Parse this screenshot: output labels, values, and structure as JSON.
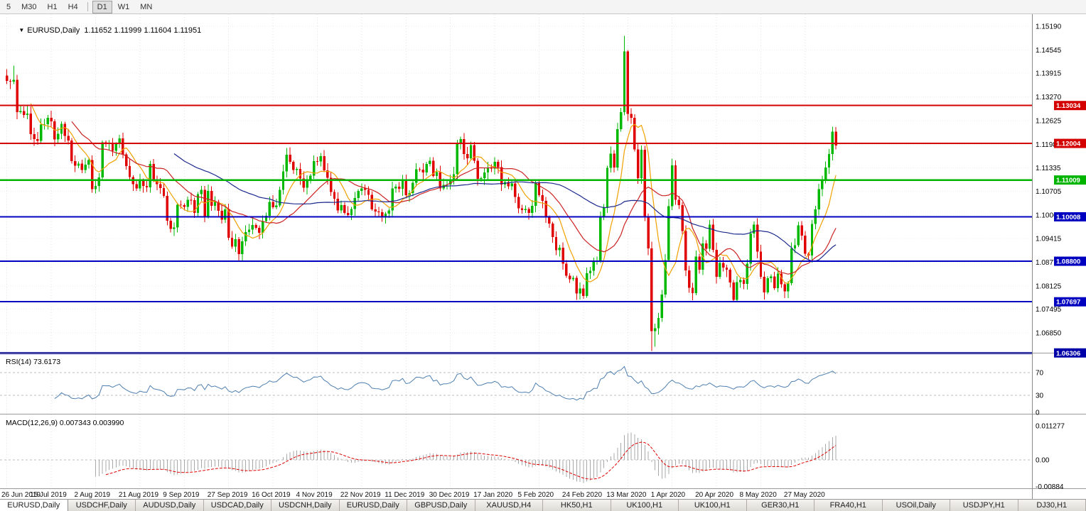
{
  "icons": {
    "collapse_triangle": "▼"
  },
  "toolbar": {
    "timeframes": [
      {
        "label": "5"
      },
      {
        "label": "M30"
      },
      {
        "label": "H1"
      },
      {
        "label": "H4",
        "sep_after": true
      },
      {
        "label": "D1"
      },
      {
        "label": "W1"
      },
      {
        "label": "MN"
      }
    ],
    "active": "D1"
  },
  "chart": {
    "header": "EURUSD,Daily  1.11652 1.11999 1.11604 1.11951"
  },
  "chart_data": {
    "type": "candlestick",
    "title": "EURUSD,Daily",
    "ohlc_display": {
      "open": "1.11652",
      "high": "1.11999",
      "low": "1.11604",
      "close": "1.11951"
    },
    "x_label_interval": 13,
    "x_labels": [
      "26 Jun 2019",
      "15 Jul 2019",
      "2 Aug 2019",
      "21 Aug 2019",
      "9 Sep 2019",
      "27 Sep 2019",
      "16 Oct 2019",
      "4 Nov 2019",
      "22 Nov 2019",
      "11 Dec 2019",
      "30 Dec 2019",
      "17 Jan 2020",
      "5 Feb 2020",
      "24 Feb 2020",
      "13 Mar 2020",
      "1 Apr 2020",
      "20 Apr 2020",
      "8 May 2020",
      "27 May 2020"
    ],
    "closes": [
      1.137,
      1.1368,
      1.1373,
      1.1285,
      1.1288,
      1.1278,
      1.1282,
      1.1226,
      1.1212,
      1.1207,
      1.1252,
      1.1253,
      1.127,
      1.126,
      1.1211,
      1.1227,
      1.1254,
      1.1221,
      1.1208,
      1.1152,
      1.114,
      1.1146,
      1.1128,
      1.1143,
      1.1155,
      1.1076,
      1.1085,
      1.1108,
      1.1203,
      1.12,
      1.1201,
      1.118,
      1.1199,
      1.1214,
      1.1171,
      1.1139,
      1.1109,
      1.109,
      1.1078,
      1.1099,
      1.1085,
      1.1081,
      1.1145,
      1.1101,
      1.109,
      1.1079,
      1.1058,
      1.099,
      1.0968,
      1.0972,
      1.1034,
      1.1033,
      1.1028,
      1.1047,
      1.1046,
      1.1011,
      1.1063,
      1.1074,
      1.1003,
      1.1071,
      1.1031,
      1.1041,
      1.1017,
      1.0993,
      1.1021,
      1.0944,
      1.092,
      1.094,
      1.0899,
      1.0934,
      1.0959,
      1.0966,
      1.0979,
      1.0971,
      1.0957,
      1.0989,
      1.1004,
      1.1041,
      1.1027,
      1.1032,
      1.1074,
      1.1124,
      1.117,
      1.115,
      1.1128,
      1.1131,
      1.1105,
      1.108,
      1.1099,
      1.1113,
      1.1152,
      1.1151,
      1.1166,
      1.1127,
      1.1107,
      1.1068,
      1.105,
      1.1018,
      1.1033,
      1.1011,
      1.1006,
      1.1022,
      1.1052,
      1.1071,
      1.1078,
      1.1074,
      1.1061,
      1.1021,
      1.1015,
      1.1013,
      1.1002,
      1.1009,
      1.1018,
      1.1078,
      1.1083,
      1.1077,
      1.1103,
      1.106,
      1.1065,
      1.1093,
      1.113,
      1.1129,
      1.1121,
      1.1145,
      1.1153,
      1.1112,
      1.1122,
      1.1078,
      1.1088,
      1.1089,
      1.1098,
      1.1117,
      1.1199,
      1.1212,
      1.1172,
      1.116,
      1.1196,
      1.1153,
      1.1104,
      1.1106,
      1.1121,
      1.1134,
      1.1132,
      1.115,
      1.1136,
      1.1089,
      1.1095,
      1.1084,
      1.1091,
      1.1055,
      1.1024,
      1.1019,
      1.1022,
      1.1011,
      1.1031,
      1.1094,
      1.106,
      1.1044,
      1.1,
      1.0982,
      1.0946,
      1.091,
      1.0917,
      1.0873,
      1.0841,
      1.0831,
      1.0835,
      1.0792,
      1.0806,
      1.0786,
      1.0847,
      1.0854,
      1.0881,
      1.0881,
      1.0999,
      1.1026,
      1.1134,
      1.1173,
      1.1135,
      1.1239,
      1.1285,
      1.145,
      1.1281,
      1.127,
      1.1184,
      1.1106,
      1.1183,
      1.1,
      1.0915,
      1.069,
      1.0698,
      1.0726,
      1.0789,
      1.0883,
      1.103,
      1.1141,
      1.1047,
      1.1033,
      1.0962,
      1.0855,
      1.0808,
      1.0793,
      1.0893,
      1.0857,
      1.0928,
      1.0914,
      1.098,
      1.0911,
      1.0838,
      1.0875,
      1.0863,
      1.0857,
      1.0822,
      1.0775,
      1.0823,
      1.0829,
      1.0818,
      1.0873,
      1.0955,
      1.098,
      1.0906,
      1.0838,
      1.0795,
      1.0834,
      1.0839,
      1.0807,
      1.0846,
      1.0817,
      1.0798,
      1.082,
      1.0915,
      1.0924,
      1.0978,
      1.095,
      1.09,
      1.0896,
      1.0981,
      1.1021,
      1.1076,
      1.1101,
      1.1135,
      1.1172,
      1.1232,
      1.1195
    ],
    "wick_overrides": {
      "0": {
        "high": 1.1402
      },
      "2": {
        "high": 1.1412
      },
      "181": {
        "high": 1.1493
      },
      "189": {
        "low": 1.0636
      },
      "190": {
        "low": 1.0648
      }
    },
    "y_axis": {
      "labels": [
        "1.15190",
        "1.14545",
        "1.13915",
        "1.13270",
        "1.12625",
        "1.11980",
        "1.11335",
        "1.10705",
        "1.10060",
        "1.09415",
        "1.08770",
        "1.08125",
        "1.07495",
        "1.06850"
      ]
    },
    "hlines": [
      {
        "value": 1.13034,
        "label": "1.13034",
        "color": "#d40000",
        "width": 2
      },
      {
        "value": 1.12004,
        "label": "1.12004",
        "color": "#d40000",
        "width": 2
      },
      {
        "value": 1.11009,
        "label": "1.11009",
        "color": "#00b400",
        "width": 2.5
      },
      {
        "value": 1.10008,
        "label": "1.10008",
        "color": "#0000c0",
        "width": 2
      },
      {
        "value": 1.088,
        "label": "1.08800",
        "color": "#0000c0",
        "width": 2
      },
      {
        "value": 1.07697,
        "label": "1.07697",
        "color": "#0000c0",
        "width": 2
      },
      {
        "value": 1.06306,
        "label": "1.06306",
        "color": "#0000a8",
        "width": 3
      }
    ],
    "moving_averages": [
      {
        "period": 8,
        "color": "#f0a000"
      },
      {
        "period": 20,
        "color": "#cc2222"
      },
      {
        "period": 50,
        "color": "#1c2a8e"
      }
    ],
    "up_color": "#00b800",
    "down_color": "#e00000",
    "rsi": {
      "label": "RSI(14) 73.6173",
      "period": 14,
      "levels": [
        70,
        30,
        0
      ],
      "color": "#4e7fb0"
    },
    "macd": {
      "label": "MACD(12,26,9) 0.007343 0.003990",
      "fast": 12,
      "slow": 26,
      "signal": 9,
      "axis_labels": [
        "0.011277",
        "0.00",
        "-0.00884"
      ],
      "axis_values": [
        0.011277,
        0.0,
        -0.00884
      ],
      "hist_color": "#a8a8a8",
      "signal_color": "#e00000"
    }
  },
  "tabs": [
    {
      "label": "EURUSD,Daily",
      "active": true
    },
    {
      "label": "USDCHF,Daily"
    },
    {
      "label": "AUDUSD,Daily"
    },
    {
      "label": "USDCAD,Daily"
    },
    {
      "label": "USDCNH,Daily"
    },
    {
      "label": "EURUSD,Daily"
    },
    {
      "label": "GBPUSD,Daily"
    },
    {
      "label": "XAUUSD,H4"
    },
    {
      "label": "HK50,H1"
    },
    {
      "label": "UK100,H1"
    },
    {
      "label": "UK100,H1"
    },
    {
      "label": "GER30,H1"
    },
    {
      "label": "FRA40,H1"
    },
    {
      "label": "USOil,Daily"
    },
    {
      "label": "USDJPY,H1"
    },
    {
      "label": "DJ30,H1"
    }
  ]
}
